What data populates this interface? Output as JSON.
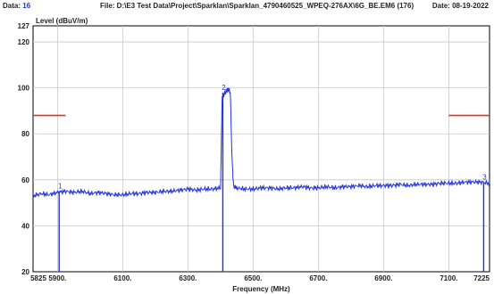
{
  "header": {
    "data_label": "Data:",
    "data_value": "16",
    "file_label": "File: D:\\E3 Test Data\\Project\\Sparklan\\Sparklan_4790460525_WPEQ-276AX\\6G_BE.EM6  (176)",
    "date_label": "Date: 08-19-2022"
  },
  "colors": {
    "trace": "#2233dd",
    "limit": "#e03020",
    "marker_label": "#2233dd",
    "data_value": "#2233dd",
    "grid": "#c8c8c8"
  },
  "chart_data": {
    "type": "line",
    "title": "",
    "ylabel": "Level (dBuV/m)",
    "xlabel": "Frequency (MHz)",
    "xlim": [
      5825,
      7225
    ],
    "ylim": [
      20,
      127
    ],
    "x_ticks": [
      5825,
      5900,
      6100,
      6300,
      6500,
      6700,
      6900,
      7100,
      7225
    ],
    "x_tick_labels": [
      "5825",
      "5900.",
      "6100.",
      "6300.",
      "6500.",
      "6700.",
      "6900.",
      "7100.",
      "7225"
    ],
    "y_ticks": [
      20,
      40,
      60,
      80,
      100,
      120,
      127
    ],
    "y_tick_labels": [
      "20",
      "40",
      "60",
      "80",
      "100",
      "120",
      "127"
    ],
    "grid": true,
    "limit_line": {
      "y": 88,
      "segments": [
        [
          5825,
          5925
        ],
        [
          7100,
          7225
        ]
      ]
    },
    "series": [
      {
        "x": [
          5825,
          5850,
          5875,
          5900,
          5925,
          5950,
          5975,
          6000,
          6025,
          6050,
          6075,
          6100,
          6125,
          6150,
          6175,
          6200,
          6225,
          6250,
          6275,
          6300,
          6325,
          6350,
          6375,
          6400,
          6405,
          6410,
          6415,
          6420,
          6425,
          6430,
          6435,
          6440,
          6450,
          6475,
          6500,
          6525,
          6550,
          6575,
          6600,
          6625,
          6650,
          6675,
          6700,
          6725,
          6750,
          6775,
          6800,
          6825,
          6850,
          6875,
          6900,
          6925,
          6950,
          6975,
          7000,
          7025,
          7050,
          7075,
          7100,
          7125,
          7150,
          7175,
          7200,
          7225
        ],
        "y": [
          53,
          54,
          53.5,
          54.5,
          55,
          54.5,
          55,
          54,
          54.5,
          54,
          53.5,
          53.5,
          54,
          54,
          54.5,
          54.5,
          55,
          55,
          55.5,
          56,
          55.5,
          56,
          56,
          56.5,
          96,
          97,
          98,
          99,
          99.5,
          98,
          70,
          57,
          56.5,
          56,
          56,
          56.5,
          56.5,
          56,
          56.5,
          56.5,
          57,
          56.5,
          56.5,
          57,
          56.5,
          57,
          57,
          57.5,
          57,
          57.5,
          57.5,
          57.5,
          58,
          57.5,
          58,
          58,
          58,
          58.5,
          58.5,
          58.5,
          59,
          59,
          59,
          58.5
        ]
      }
    ],
    "markers": [
      {
        "label": "1",
        "x": 5905,
        "y": 55
      },
      {
        "label": "2",
        "x": 6407,
        "y": 98
      },
      {
        "label": "3",
        "x": 7207,
        "y": 59
      }
    ]
  }
}
